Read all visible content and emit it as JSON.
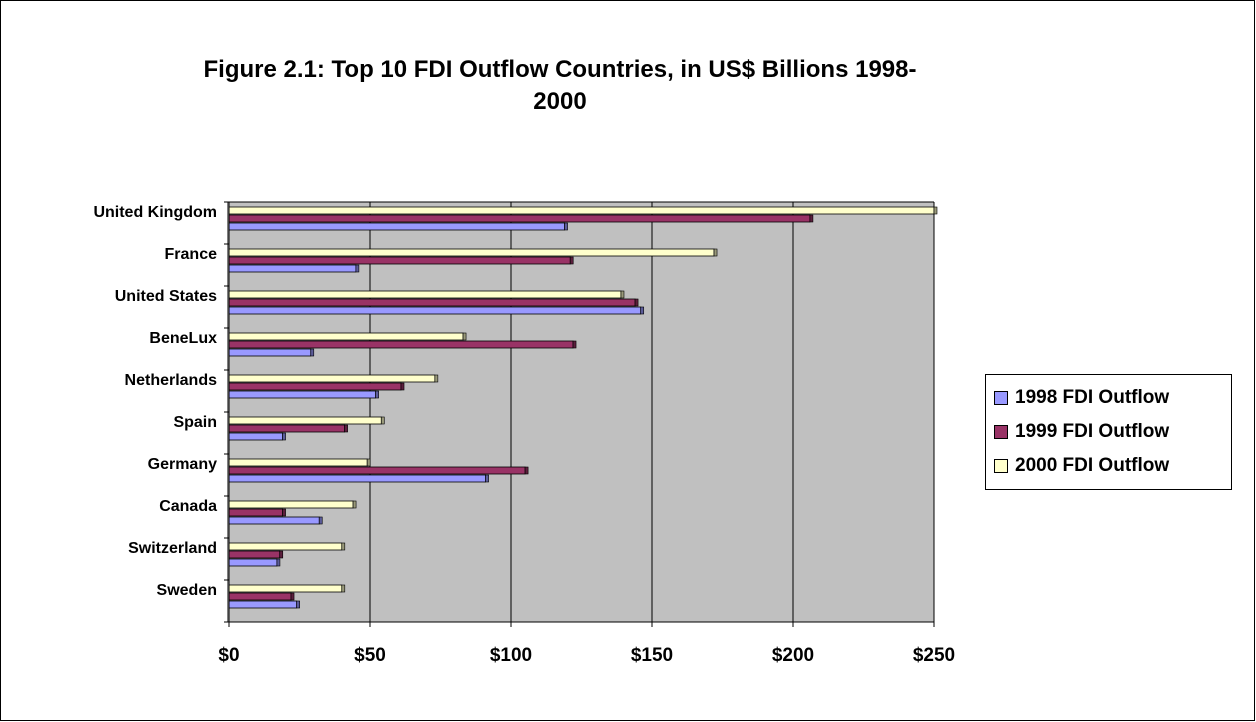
{
  "chart_data": {
    "type": "bar",
    "orientation": "horizontal",
    "title": "Figure 2.1: Top 10 FDI Outflow Countries, in US$ Billions 1998-2000",
    "title_lines": [
      "Figure 2.1: Top 10 FDI Outflow Countries, in US$ Billions 1998-",
      "2000"
    ],
    "categories": [
      "United Kingdom",
      "France",
      "United States",
      "BeneLux",
      "Netherlands",
      "Spain",
      "Germany",
      "Canada",
      "Switzerland",
      "Sweden"
    ],
    "series": [
      {
        "name": "1998 FDI Outflow",
        "color": "#9999ff",
        "values": [
          119,
          45,
          146,
          29,
          52,
          19,
          91,
          32,
          17,
          24
        ]
      },
      {
        "name": "1999 FDI Outflow",
        "color": "#993366",
        "values": [
          206,
          121,
          144,
          122,
          61,
          41,
          105,
          19,
          18,
          22
        ]
      },
      {
        "name": "2000 FDI Outflow",
        "color": "#ffffcc",
        "values": [
          250,
          172,
          139,
          83,
          73,
          54,
          49,
          44,
          40,
          40
        ]
      }
    ],
    "xlim": [
      0,
      250
    ],
    "x_ticks": [
      0,
      50,
      100,
      150,
      200,
      250
    ],
    "x_tick_labels": [
      "$0",
      "$50",
      "$100",
      "$150",
      "$200",
      "$250"
    ],
    "plot_background": "#c0c0c0",
    "grid": "vertical",
    "legend_position": "right"
  },
  "legend": {
    "items": [
      {
        "label": "1998 FDI Outflow",
        "color": "#9999ff"
      },
      {
        "label": "1999 FDI Outflow",
        "color": "#993366"
      },
      {
        "label": "2000 FDI Outflow",
        "color": "#ffffcc"
      }
    ]
  }
}
